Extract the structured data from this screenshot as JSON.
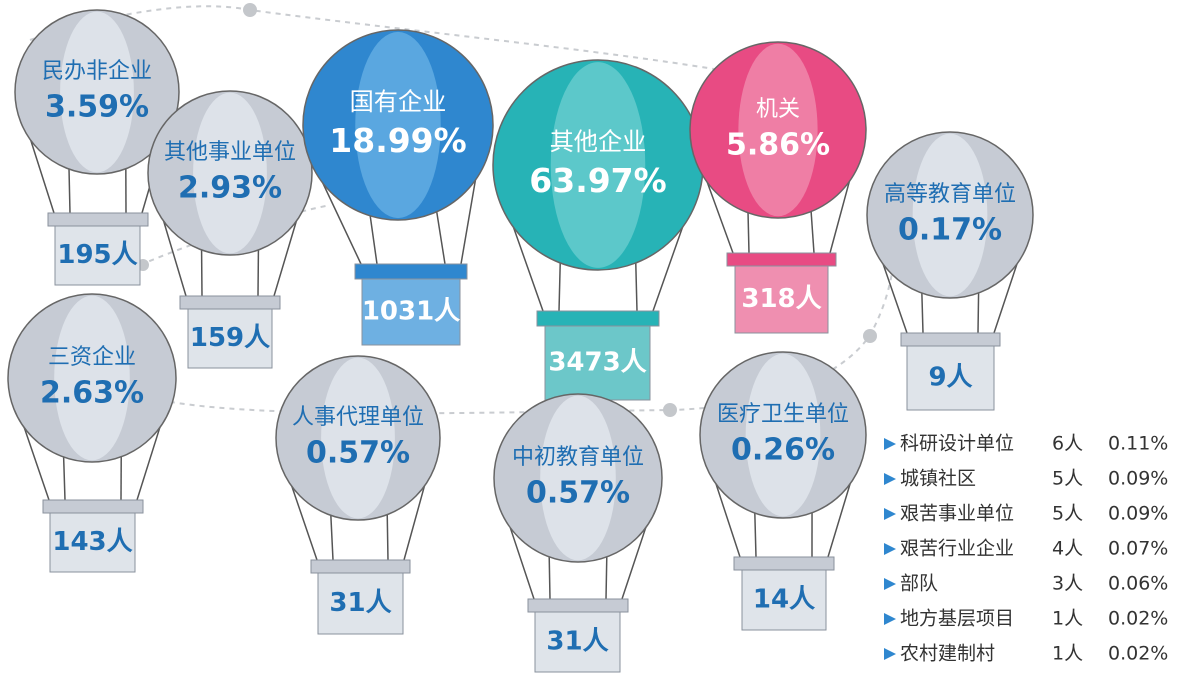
{
  "balloons": [
    {
      "name": "民办非企业",
      "percent": "3.59%",
      "count": "195人"
    },
    {
      "name": "其他事业单位",
      "percent": "2.93%",
      "count": "159人"
    },
    {
      "name": "国有企业",
      "percent": "18.99%",
      "count": "1031人"
    },
    {
      "name": "其他企业",
      "percent": "63.97%",
      "count": "3473人"
    },
    {
      "name": "机关",
      "percent": "5.86%",
      "count": "318人"
    },
    {
      "name": "高等教育单位",
      "percent": "0.17%",
      "count": "9人"
    },
    {
      "name": "三资企业",
      "percent": "2.63%",
      "count": "143人"
    },
    {
      "name": "人事代理单位",
      "percent": "0.57%",
      "count": "31人"
    },
    {
      "name": "中初教育单位",
      "percent": "0.57%",
      "count": "31人"
    },
    {
      "name": "医疗卫生单位",
      "percent": "0.26%",
      "count": "14人"
    }
  ],
  "legend": [
    {
      "name": "科研设计单位",
      "count": "6人",
      "percent": "0.11%"
    },
    {
      "name": "城镇社区",
      "count": "5人",
      "percent": "0.09%"
    },
    {
      "name": "艰苦事业单位",
      "count": "5人",
      "percent": "0.09%"
    },
    {
      "name": "艰苦行业企业",
      "count": "4人",
      "percent": "0.07%"
    },
    {
      "name": "部队",
      "count": "3人",
      "percent": "0.06%"
    },
    {
      "name": "地方基层项目",
      "count": "1人",
      "percent": "0.02%"
    },
    {
      "name": "农村建制村",
      "count": "1人",
      "percent": "0.02%"
    }
  ]
}
